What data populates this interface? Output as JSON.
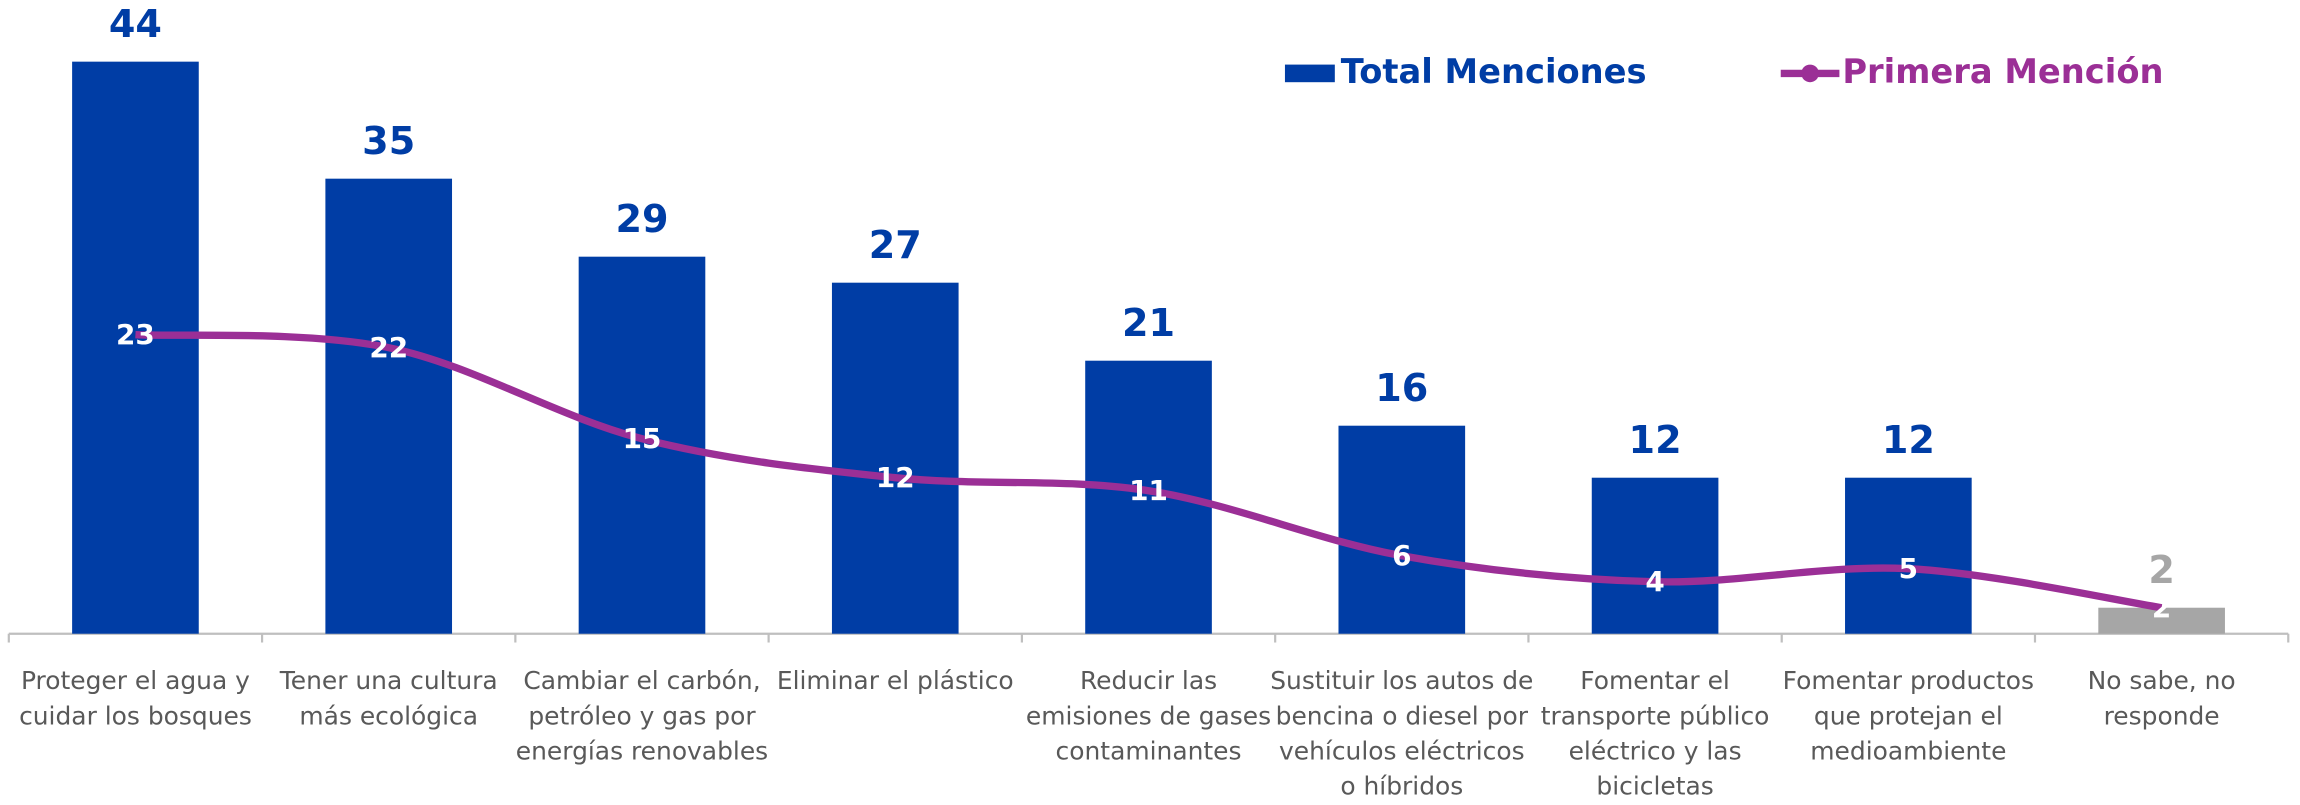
{
  "chart_data": {
    "type": "bar_line",
    "categories": [
      [
        "Proteger el agua y",
        "cuidar los bosques"
      ],
      [
        "Tener una cultura",
        "más ecológica"
      ],
      [
        "Cambiar el carbón,",
        "petróleo y gas por",
        "energías renovables"
      ],
      [
        "Eliminar el plástico"
      ],
      [
        "Reducir las",
        "emisiones de gases",
        "contaminantes"
      ],
      [
        "Sustituir los autos de",
        "bencina o diesel por",
        "vehículos eléctricos",
        "o híbridos"
      ],
      [
        "Fomentar el",
        "transporte público",
        "eléctrico y las",
        "bicicletas"
      ],
      [
        "Fomentar productos",
        "que protejan el",
        "medioambiente"
      ],
      [
        "No sabe, no",
        "responde"
      ]
    ],
    "series": [
      {
        "name": "Total Menciones",
        "type": "bar",
        "color": "#003da5",
        "colors": [
          "#003da5",
          "#003da5",
          "#003da5",
          "#003da5",
          "#003da5",
          "#003da5",
          "#003da5",
          "#003da5",
          "#a6a6a6"
        ],
        "values": [
          44,
          35,
          29,
          27,
          21,
          16,
          12,
          12,
          2
        ]
      },
      {
        "name": "Primera Mención",
        "type": "line",
        "color": "#9b2f96",
        "values": [
          23,
          22,
          15,
          12,
          11,
          6,
          4,
          5,
          2
        ]
      }
    ],
    "ylim": [
      0,
      44
    ],
    "legend": "top-right"
  }
}
